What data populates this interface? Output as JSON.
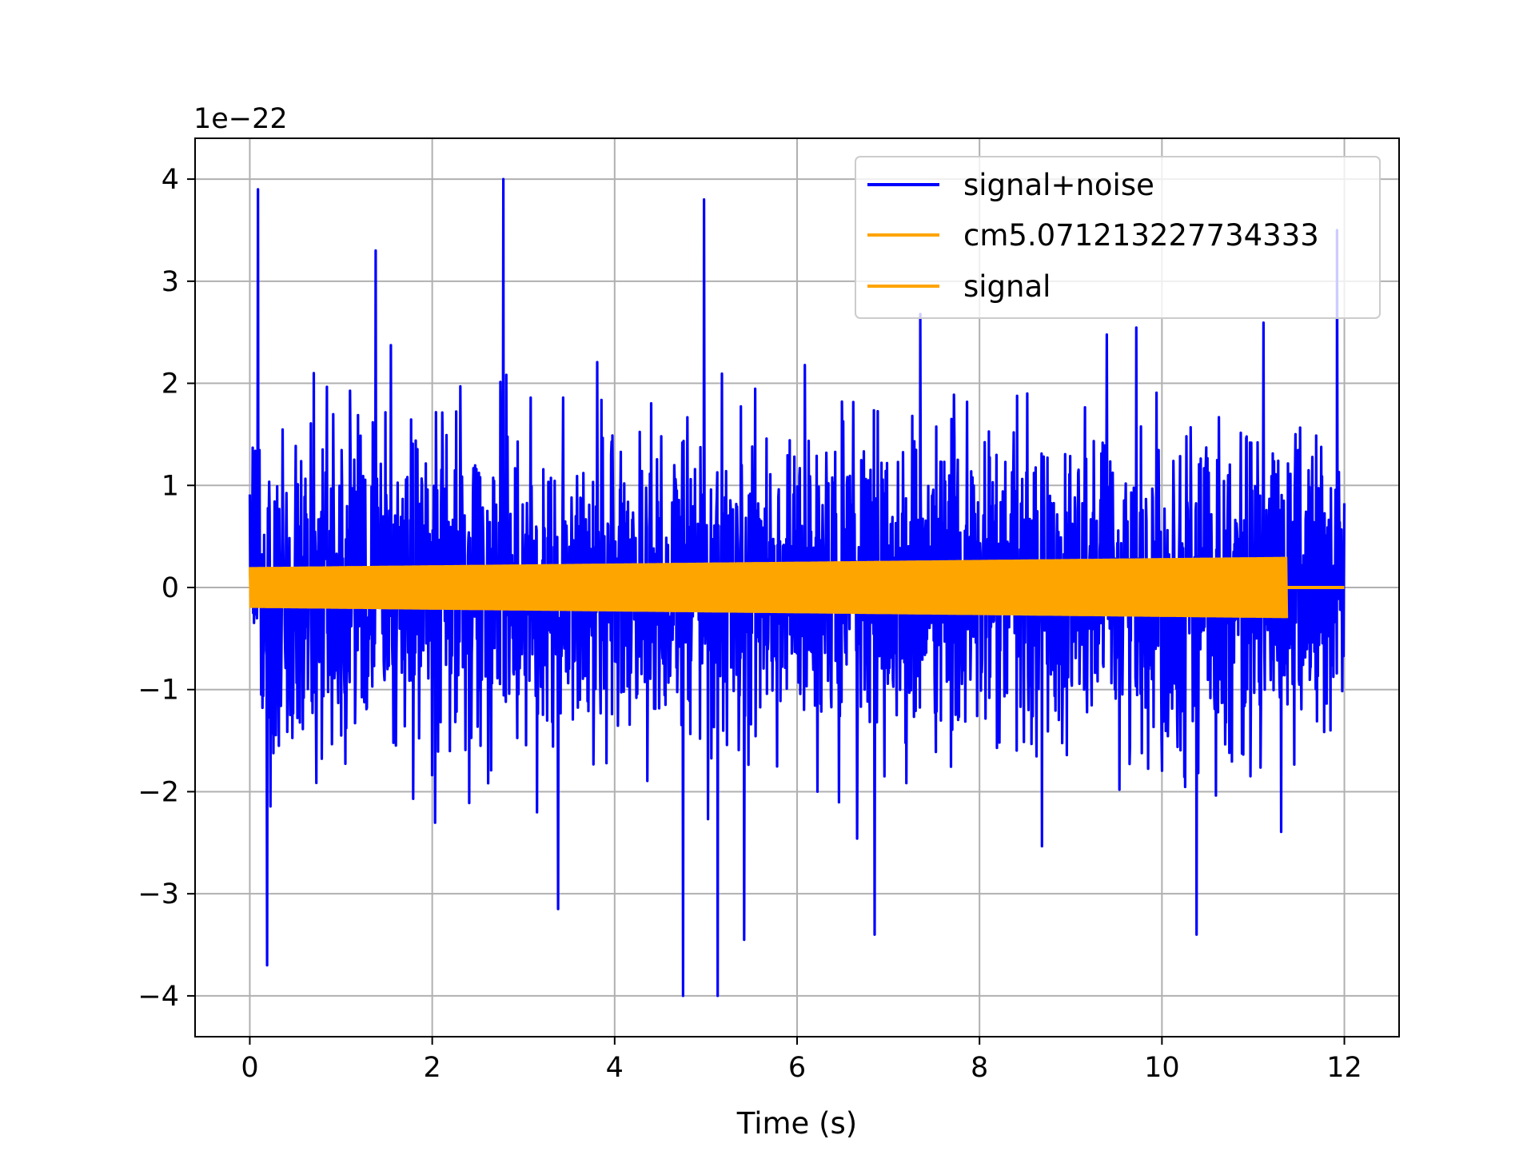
{
  "chart_data": {
    "type": "line",
    "title": "",
    "xlabel": "Time (s)",
    "ylabel": "",
    "y_offset_label": "1e−22",
    "xlim": [
      -0.6,
      12.6
    ],
    "ylim": [
      -4.4,
      4.4
    ],
    "x_ticks": [
      0,
      2,
      4,
      6,
      8,
      10,
      12
    ],
    "x_tick_labels": [
      "0",
      "2",
      "4",
      "6",
      "8",
      "10",
      "12"
    ],
    "y_ticks": [
      -4,
      -3,
      -2,
      -1,
      0,
      1,
      2,
      3,
      4
    ],
    "y_tick_labels": [
      "−4",
      "−3",
      "−2",
      "−1",
      "0",
      "1",
      "2",
      "3",
      "4"
    ],
    "grid": true,
    "legend_position": "upper right",
    "series": [
      {
        "name": "signal+noise",
        "color": "#0000ff",
        "t_start": 0,
        "t_end": 12.0,
        "envelope_typical": 1.6,
        "peaks": [
          {
            "x": 0.09,
            "y": 3.9
          },
          {
            "x": 0.19,
            "y": -3.7
          },
          {
            "x": 1.38,
            "y": 3.3
          },
          {
            "x": 2.78,
            "y": 4.0
          },
          {
            "x": 3.38,
            "y": -3.15
          },
          {
            "x": 4.75,
            "y": -4.0
          },
          {
            "x": 4.98,
            "y": 3.8
          },
          {
            "x": 5.13,
            "y": -4.0
          },
          {
            "x": 5.42,
            "y": -3.45
          },
          {
            "x": 6.85,
            "y": -3.4
          },
          {
            "x": 10.38,
            "y": -3.4
          },
          {
            "x": 11.92,
            "y": 3.5
          }
        ]
      },
      {
        "name": "cm5.071213227734333",
        "color": "#ffa500",
        "t_start": 0,
        "t_end": 11.37,
        "amplitude_start": 0.2,
        "amplitude_end": 0.3
      },
      {
        "name": "signal",
        "color": "#ffa500",
        "t_start": 11.37,
        "t_end": 12.0,
        "value": 0
      }
    ]
  }
}
